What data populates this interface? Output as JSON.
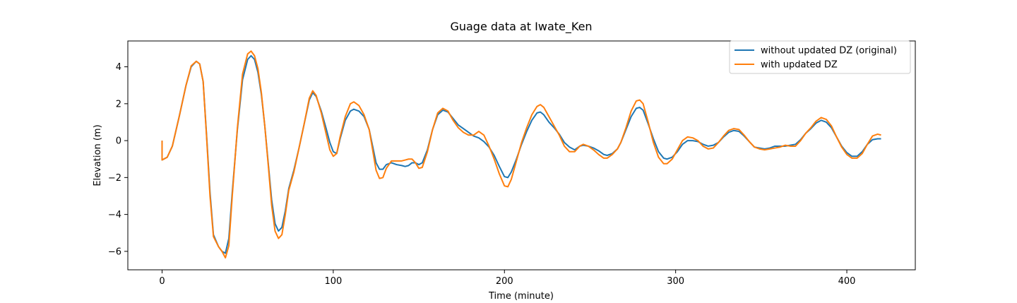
{
  "chart_data": {
    "type": "line",
    "title": "Guage data at Iwate_Ken",
    "xlabel": "Time (minute)",
    "ylabel": "Elevation (m)",
    "xlim": [
      -20,
      440
    ],
    "ylim": [
      -7,
      5.4
    ],
    "xticks": [
      0,
      100,
      200,
      300,
      400
    ],
    "xtick_labels": [
      "0",
      "100",
      "200",
      "300",
      "400"
    ],
    "yticks": [
      -6,
      -4,
      -2,
      0,
      2,
      4
    ],
    "ytick_labels": [
      "−6",
      "−4",
      "−2",
      "0",
      "2",
      "4"
    ],
    "grid": false,
    "legend_position": "top-right",
    "series": [
      {
        "name": "without updated DZ (original)",
        "color": "#1f77b4",
        "points": [
          [
            0,
            0.0
          ],
          [
            0,
            -1.05
          ],
          [
            3,
            -0.9
          ],
          [
            6,
            -0.3
          ],
          [
            10,
            1.3
          ],
          [
            14,
            3.0
          ],
          [
            17,
            4.0
          ],
          [
            20,
            4.3
          ],
          [
            22,
            4.15
          ],
          [
            24,
            3.2
          ],
          [
            26,
            0.3
          ],
          [
            28,
            -2.8
          ],
          [
            30,
            -5.1
          ],
          [
            33,
            -5.75
          ],
          [
            35,
            -6.0
          ],
          [
            37,
            -6.1
          ],
          [
            39,
            -5.3
          ],
          [
            41,
            -2.8
          ],
          [
            44,
            0.6
          ],
          [
            47,
            3.3
          ],
          [
            50,
            4.4
          ],
          [
            52,
            4.6
          ],
          [
            54,
            4.4
          ],
          [
            56,
            3.7
          ],
          [
            58,
            2.5
          ],
          [
            60,
            0.8
          ],
          [
            62,
            -1.2
          ],
          [
            64,
            -3.2
          ],
          [
            66,
            -4.5
          ],
          [
            68,
            -4.9
          ],
          [
            70,
            -4.7
          ],
          [
            72,
            -3.8
          ],
          [
            74,
            -2.6
          ],
          [
            77,
            -1.6
          ],
          [
            80,
            -0.4
          ],
          [
            83,
            0.9
          ],
          [
            86,
            2.2
          ],
          [
            88,
            2.6
          ],
          [
            90,
            2.4
          ],
          [
            93,
            1.6
          ],
          [
            96,
            0.6
          ],
          [
            98,
            -0.1
          ],
          [
            100,
            -0.6
          ],
          [
            102,
            -0.7
          ],
          [
            104,
            0.1
          ],
          [
            107,
            1.1
          ],
          [
            110,
            1.6
          ],
          [
            112,
            1.7
          ],
          [
            115,
            1.6
          ],
          [
            118,
            1.3
          ],
          [
            121,
            0.6
          ],
          [
            123,
            -0.3
          ],
          [
            125,
            -1.2
          ],
          [
            127,
            -1.55
          ],
          [
            129,
            -1.55
          ],
          [
            131,
            -1.3
          ],
          [
            134,
            -1.2
          ],
          [
            137,
            -1.3
          ],
          [
            140,
            -1.35
          ],
          [
            142,
            -1.4
          ],
          [
            144,
            -1.35
          ],
          [
            146,
            -1.2
          ],
          [
            148,
            -1.2
          ],
          [
            150,
            -1.3
          ],
          [
            152,
            -1.2
          ],
          [
            155,
            -0.5
          ],
          [
            158,
            0.6
          ],
          [
            161,
            1.4
          ],
          [
            164,
            1.65
          ],
          [
            167,
            1.55
          ],
          [
            170,
            1.2
          ],
          [
            173,
            0.85
          ],
          [
            176,
            0.65
          ],
          [
            179,
            0.45
          ],
          [
            182,
            0.25
          ],
          [
            185,
            0.15
          ],
          [
            188,
            -0.05
          ],
          [
            191,
            -0.35
          ],
          [
            194,
            -0.8
          ],
          [
            197,
            -1.4
          ],
          [
            200,
            -1.95
          ],
          [
            202,
            -2.0
          ],
          [
            204,
            -1.7
          ],
          [
            207,
            -1.0
          ],
          [
            210,
            -0.2
          ],
          [
            213,
            0.5
          ],
          [
            216,
            1.1
          ],
          [
            219,
            1.5
          ],
          [
            221,
            1.55
          ],
          [
            223,
            1.4
          ],
          [
            226,
            1.0
          ],
          [
            229,
            0.7
          ],
          [
            232,
            0.35
          ],
          [
            235,
            -0.1
          ],
          [
            238,
            -0.35
          ],
          [
            241,
            -0.5
          ],
          [
            244,
            -0.3
          ],
          [
            246,
            -0.25
          ],
          [
            249,
            -0.3
          ],
          [
            252,
            -0.4
          ],
          [
            255,
            -0.55
          ],
          [
            258,
            -0.75
          ],
          [
            260,
            -0.8
          ],
          [
            263,
            -0.7
          ],
          [
            266,
            -0.45
          ],
          [
            268,
            -0.1
          ],
          [
            271,
            0.6
          ],
          [
            274,
            1.3
          ],
          [
            277,
            1.75
          ],
          [
            279,
            1.8
          ],
          [
            281,
            1.65
          ],
          [
            284,
            0.9
          ],
          [
            287,
            0.1
          ],
          [
            290,
            -0.6
          ],
          [
            293,
            -0.95
          ],
          [
            295,
            -1.0
          ],
          [
            298,
            -0.9
          ],
          [
            301,
            -0.6
          ],
          [
            304,
            -0.2
          ],
          [
            307,
            0.0
          ],
          [
            310,
            0.0
          ],
          [
            313,
            -0.05
          ],
          [
            316,
            -0.2
          ],
          [
            319,
            -0.3
          ],
          [
            322,
            -0.25
          ],
          [
            325,
            -0.1
          ],
          [
            328,
            0.2
          ],
          [
            331,
            0.45
          ],
          [
            334,
            0.55
          ],
          [
            337,
            0.5
          ],
          [
            340,
            0.25
          ],
          [
            343,
            -0.05
          ],
          [
            346,
            -0.35
          ],
          [
            349,
            -0.4
          ],
          [
            352,
            -0.45
          ],
          [
            355,
            -0.4
          ],
          [
            358,
            -0.3
          ],
          [
            361,
            -0.3
          ],
          [
            364,
            -0.3
          ],
          [
            367,
            -0.25
          ],
          [
            370,
            -0.2
          ],
          [
            373,
            0.05
          ],
          [
            376,
            0.4
          ],
          [
            379,
            0.65
          ],
          [
            382,
            0.95
          ],
          [
            385,
            1.1
          ],
          [
            388,
            1.0
          ],
          [
            391,
            0.7
          ],
          [
            394,
            0.2
          ],
          [
            397,
            -0.3
          ],
          [
            400,
            -0.65
          ],
          [
            403,
            -0.85
          ],
          [
            406,
            -0.85
          ],
          [
            409,
            -0.6
          ],
          [
            412,
            -0.2
          ],
          [
            415,
            0.05
          ],
          [
            418,
            0.1
          ],
          [
            420,
            0.1
          ]
        ]
      },
      {
        "name": "with updated DZ",
        "color": "#ff7f0e",
        "points": [
          [
            0,
            0.0
          ],
          [
            0,
            -1.05
          ],
          [
            3,
            -0.9
          ],
          [
            6,
            -0.3
          ],
          [
            10,
            1.3
          ],
          [
            14,
            3.0
          ],
          [
            17,
            4.05
          ],
          [
            20,
            4.3
          ],
          [
            22,
            4.15
          ],
          [
            24,
            3.2
          ],
          [
            26,
            0.2
          ],
          [
            28,
            -3.0
          ],
          [
            30,
            -5.2
          ],
          [
            33,
            -5.75
          ],
          [
            35,
            -6.0
          ],
          [
            37,
            -6.35
          ],
          [
            39,
            -5.7
          ],
          [
            41,
            -3.0
          ],
          [
            44,
            0.7
          ],
          [
            47,
            3.6
          ],
          [
            50,
            4.7
          ],
          [
            52,
            4.85
          ],
          [
            54,
            4.6
          ],
          [
            56,
            3.9
          ],
          [
            58,
            2.6
          ],
          [
            60,
            0.8
          ],
          [
            62,
            -1.3
          ],
          [
            64,
            -3.5
          ],
          [
            66,
            -4.9
          ],
          [
            68,
            -5.3
          ],
          [
            70,
            -5.1
          ],
          [
            72,
            -4.0
          ],
          [
            74,
            -2.7
          ],
          [
            77,
            -1.7
          ],
          [
            80,
            -0.4
          ],
          [
            83,
            0.9
          ],
          [
            86,
            2.3
          ],
          [
            88,
            2.7
          ],
          [
            90,
            2.45
          ],
          [
            93,
            1.5
          ],
          [
            96,
            0.3
          ],
          [
            98,
            -0.5
          ],
          [
            100,
            -0.85
          ],
          [
            102,
            -0.7
          ],
          [
            104,
            0.2
          ],
          [
            107,
            1.3
          ],
          [
            110,
            2.0
          ],
          [
            112,
            2.1
          ],
          [
            115,
            1.9
          ],
          [
            118,
            1.4
          ],
          [
            121,
            0.6
          ],
          [
            123,
            -0.5
          ],
          [
            125,
            -1.6
          ],
          [
            127,
            -2.05
          ],
          [
            129,
            -2.0
          ],
          [
            131,
            -1.5
          ],
          [
            134,
            -1.1
          ],
          [
            137,
            -1.1
          ],
          [
            140,
            -1.1
          ],
          [
            142,
            -1.05
          ],
          [
            144,
            -1.0
          ],
          [
            146,
            -1.0
          ],
          [
            148,
            -1.2
          ],
          [
            150,
            -1.5
          ],
          [
            152,
            -1.45
          ],
          [
            155,
            -0.6
          ],
          [
            158,
            0.6
          ],
          [
            161,
            1.5
          ],
          [
            164,
            1.75
          ],
          [
            167,
            1.6
          ],
          [
            170,
            1.1
          ],
          [
            173,
            0.7
          ],
          [
            176,
            0.45
          ],
          [
            179,
            0.3
          ],
          [
            182,
            0.3
          ],
          [
            185,
            0.5
          ],
          [
            188,
            0.3
          ],
          [
            191,
            -0.3
          ],
          [
            194,
            -1.0
          ],
          [
            197,
            -1.8
          ],
          [
            200,
            -2.45
          ],
          [
            202,
            -2.5
          ],
          [
            204,
            -2.1
          ],
          [
            207,
            -1.1
          ],
          [
            210,
            -0.1
          ],
          [
            213,
            0.7
          ],
          [
            216,
            1.4
          ],
          [
            219,
            1.85
          ],
          [
            221,
            1.95
          ],
          [
            223,
            1.8
          ],
          [
            226,
            1.3
          ],
          [
            229,
            0.8
          ],
          [
            232,
            0.3
          ],
          [
            235,
            -0.3
          ],
          [
            238,
            -0.6
          ],
          [
            241,
            -0.6
          ],
          [
            244,
            -0.3
          ],
          [
            246,
            -0.2
          ],
          [
            249,
            -0.3
          ],
          [
            252,
            -0.5
          ],
          [
            255,
            -0.75
          ],
          [
            258,
            -0.95
          ],
          [
            260,
            -0.95
          ],
          [
            263,
            -0.75
          ],
          [
            266,
            -0.45
          ],
          [
            268,
            -0.1
          ],
          [
            271,
            0.7
          ],
          [
            274,
            1.6
          ],
          [
            277,
            2.15
          ],
          [
            279,
            2.2
          ],
          [
            281,
            2.0
          ],
          [
            284,
            1.0
          ],
          [
            287,
            -0.1
          ],
          [
            290,
            -0.9
          ],
          [
            293,
            -1.25
          ],
          [
            295,
            -1.25
          ],
          [
            298,
            -1.0
          ],
          [
            301,
            -0.5
          ],
          [
            304,
            0.0
          ],
          [
            307,
            0.2
          ],
          [
            310,
            0.15
          ],
          [
            313,
            0.0
          ],
          [
            316,
            -0.3
          ],
          [
            319,
            -0.45
          ],
          [
            322,
            -0.4
          ],
          [
            325,
            -0.1
          ],
          [
            328,
            0.25
          ],
          [
            331,
            0.55
          ],
          [
            334,
            0.65
          ],
          [
            337,
            0.6
          ],
          [
            340,
            0.3
          ],
          [
            343,
            -0.05
          ],
          [
            346,
            -0.35
          ],
          [
            349,
            -0.45
          ],
          [
            352,
            -0.5
          ],
          [
            355,
            -0.45
          ],
          [
            358,
            -0.4
          ],
          [
            361,
            -0.35
          ],
          [
            364,
            -0.25
          ],
          [
            367,
            -0.3
          ],
          [
            370,
            -0.3
          ],
          [
            373,
            0.0
          ],
          [
            376,
            0.4
          ],
          [
            379,
            0.7
          ],
          [
            382,
            1.05
          ],
          [
            385,
            1.25
          ],
          [
            388,
            1.15
          ],
          [
            391,
            0.8
          ],
          [
            394,
            0.2
          ],
          [
            397,
            -0.35
          ],
          [
            400,
            -0.75
          ],
          [
            403,
            -0.95
          ],
          [
            406,
            -0.95
          ],
          [
            409,
            -0.7
          ],
          [
            412,
            -0.2
          ],
          [
            415,
            0.25
          ],
          [
            418,
            0.35
          ],
          [
            420,
            0.3
          ]
        ]
      }
    ]
  }
}
